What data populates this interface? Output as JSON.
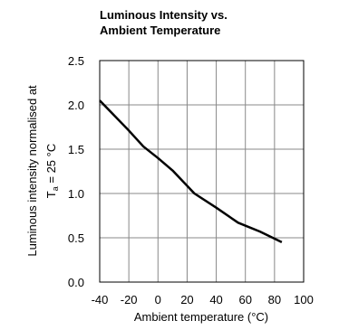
{
  "chart_data": {
    "type": "line",
    "title_lines": [
      "Luminous Intensity vs.",
      "Ambient Temperature"
    ],
    "xlabel": "Ambient temperature (°C)",
    "ylabel_line1": "Luminous intensity normalised at",
    "ylabel_line2_prefix": "T",
    "ylabel_line2_sub": "a",
    "ylabel_line2_suffix": " = 25 °C",
    "xlim": [
      -40,
      100
    ],
    "ylim": [
      0.0,
      2.5
    ],
    "xticks": [
      -40,
      -20,
      0,
      20,
      40,
      60,
      80,
      100
    ],
    "yticks": [
      "0.0",
      "0.5",
      "1.0",
      "1.5",
      "2.0",
      "2.5"
    ],
    "grid": true,
    "series": [
      {
        "x": [
          -40,
          -30,
          -20,
          -10,
          0,
          10,
          25,
          40,
          55,
          70,
          85
        ],
        "y": [
          2.05,
          1.88,
          1.71,
          1.53,
          1.4,
          1.26,
          1.0,
          0.84,
          0.67,
          0.57,
          0.45
        ]
      }
    ]
  }
}
